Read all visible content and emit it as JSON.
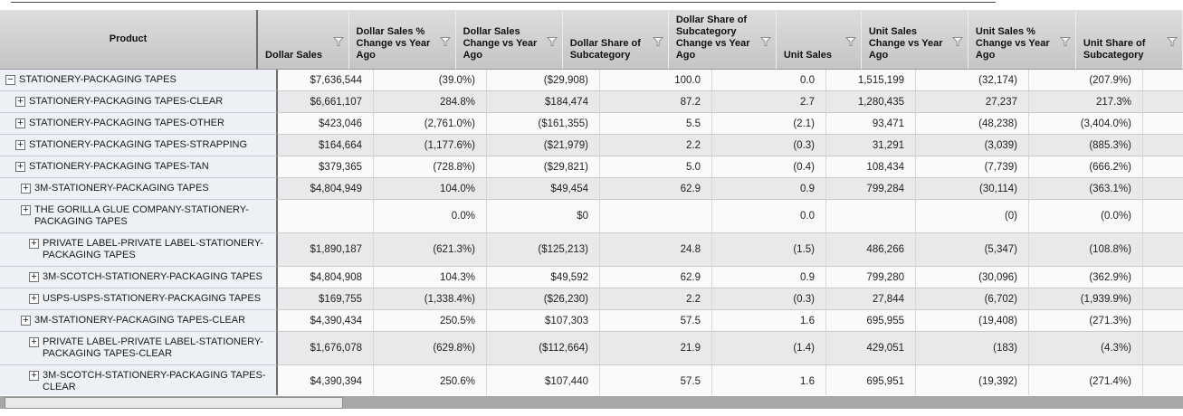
{
  "grid": {
    "product_header": "Product",
    "columns": [
      {
        "label": "Dollar Sales",
        "filter_icon": "funnel-filter"
      },
      {
        "label": "Dollar Sales % Change vs Year Ago",
        "filter_icon": "funnel-filter"
      },
      {
        "label": "Dollar Sales Change vs Year Ago",
        "filter_icon": "funnel-filter"
      },
      {
        "label": "Dollar Share of Subcategory",
        "filter_icon": "funnel-filter"
      },
      {
        "label": "Dollar Share of Subcategory Change vs Year Ago",
        "filter_icon": "funnel-filter"
      },
      {
        "label": "Unit Sales",
        "filter_icon": "funnel-filter"
      },
      {
        "label": "Unit Sales Change vs Year Ago",
        "filter_icon": "funnel-filter"
      },
      {
        "label": "Unit Sales % Change vs Year Ago",
        "filter_icon": "funnel-filter"
      },
      {
        "label": "Unit Share of Subcategory",
        "filter_icon": "funnel-filter"
      }
    ],
    "icons": {
      "collapse_glyph": "−",
      "expand_glyph": "+"
    },
    "rows": [
      {
        "label": "STATIONERY-PACKAGING TAPES",
        "level": 0,
        "expanded": true,
        "values": [
          "$7,636,544",
          "(39.0%)",
          "($29,908)",
          "100.0",
          "0.0",
          "1,515,199",
          "(32,174)",
          "(207.9%)",
          ""
        ]
      },
      {
        "label": "STATIONERY-PACKAGING TAPES-CLEAR",
        "level": 1,
        "expanded": false,
        "values": [
          "$6,661,107",
          "284.8%",
          "$184,474",
          "87.2",
          "2.7",
          "1,280,435",
          "27,237",
          "217.3%",
          ""
        ]
      },
      {
        "label": "STATIONERY-PACKAGING TAPES-OTHER",
        "level": 1,
        "expanded": false,
        "values": [
          "$423,046",
          "(2,761.0%)",
          "($161,355)",
          "5.5",
          "(2.1)",
          "93,471",
          "(48,238)",
          "(3,404.0%)",
          ""
        ]
      },
      {
        "label": "STATIONERY-PACKAGING TAPES-STRAPPING",
        "level": 1,
        "expanded": false,
        "values": [
          "$164,664",
          "(1,177.6%)",
          "($21,979)",
          "2.2",
          "(0.3)",
          "31,291",
          "(3,039)",
          "(885.3%)",
          ""
        ]
      },
      {
        "label": "STATIONERY-PACKAGING TAPES-TAN",
        "level": 1,
        "expanded": false,
        "values": [
          "$379,365",
          "(728.8%)",
          "($29,821)",
          "5.0",
          "(0.4)",
          "108,434",
          "(7,739)",
          "(666.2%)",
          ""
        ]
      },
      {
        "label": "3M-STATIONERY-PACKAGING TAPES",
        "level": 2,
        "expanded": false,
        "values": [
          "$4,804,949",
          "104.0%",
          "$49,454",
          "62.9",
          "0.9",
          "799,284",
          "(30,114)",
          "(363.1%)",
          ""
        ]
      },
      {
        "label": "THE GORILLA GLUE COMPANY-STATIONERY-PACKAGING TAPES",
        "level": 2,
        "expanded": false,
        "values": [
          "",
          "0.0%",
          "$0",
          "",
          "0.0",
          "",
          "(0)",
          "(0.0%)",
          ""
        ]
      },
      {
        "label": "PRIVATE LABEL-PRIVATE LABEL-STATIONERY-PACKAGING TAPES",
        "level": 3,
        "expanded": false,
        "values": [
          "$1,890,187",
          "(621.3%)",
          "($125,213)",
          "24.8",
          "(1.5)",
          "486,266",
          "(5,347)",
          "(108.8%)",
          ""
        ]
      },
      {
        "label": "3M-SCOTCH-STATIONERY-PACKAGING TAPES",
        "level": 3,
        "expanded": false,
        "values": [
          "$4,804,908",
          "104.3%",
          "$49,592",
          "62.9",
          "0.9",
          "799,280",
          "(30,096)",
          "(362.9%)",
          ""
        ]
      },
      {
        "label": "USPS-USPS-STATIONERY-PACKAGING TAPES",
        "level": 3,
        "expanded": false,
        "values": [
          "$169,755",
          "(1,338.4%)",
          "($26,230)",
          "2.2",
          "(0.3)",
          "27,844",
          "(6,702)",
          "(1,939.9%)",
          ""
        ]
      },
      {
        "label": "3M-STATIONERY-PACKAGING TAPES-CLEAR",
        "level": 2,
        "expanded": false,
        "values": [
          "$4,390,434",
          "250.5%",
          "$107,303",
          "57.5",
          "1.6",
          "695,955",
          "(19,408)",
          "(271.3%)",
          ""
        ]
      },
      {
        "label": "PRIVATE LABEL-PRIVATE LABEL-STATIONERY-PACKAGING TAPES-CLEAR",
        "level": 3,
        "expanded": false,
        "values": [
          "$1,676,078",
          "(629.8%)",
          "($112,664)",
          "21.9",
          "(1.4)",
          "429,051",
          "(183)",
          "(4.3%)",
          ""
        ]
      },
      {
        "label": "3M-SCOTCH-STATIONERY-PACKAGING TAPES-CLEAR",
        "level": 3,
        "expanded": false,
        "values": [
          "$4,390,394",
          "250.6%",
          "$107,440",
          "57.5",
          "1.6",
          "695,951",
          "(19,392)",
          "(271.4%)",
          ""
        ]
      }
    ],
    "colors": {
      "header_top": "#dddddd",
      "header_bottom": "#c5c5c5",
      "row_odd": "#fafafa",
      "row_even": "#e9e9eb",
      "product_col_bg": "#edf0f5",
      "divider_dark": "#6f6f6f",
      "scrollbar_track": "#a7a7a7",
      "scrollbar_thumb": "#e9e9e9"
    }
  }
}
